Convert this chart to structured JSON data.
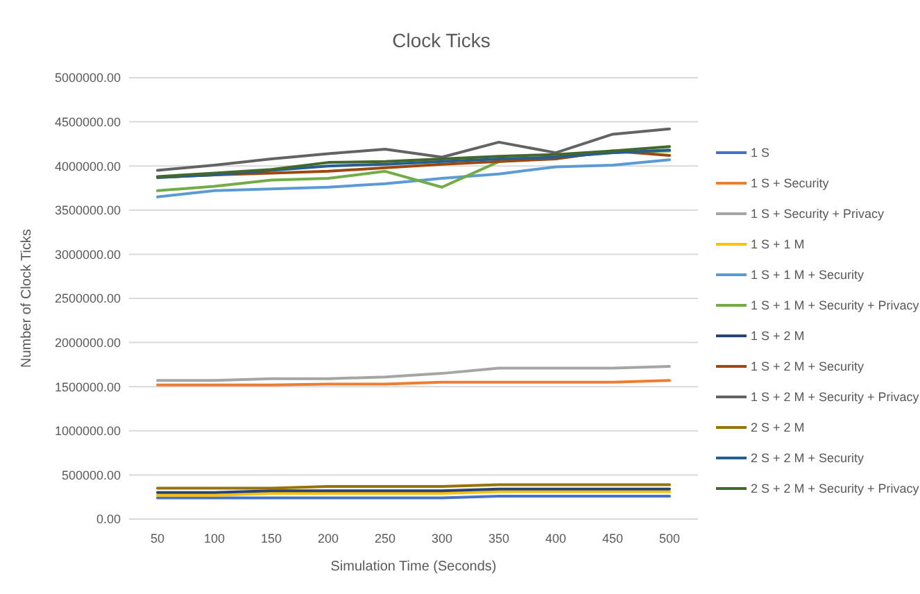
{
  "chart_data": {
    "type": "line",
    "title": "Clock Ticks",
    "xlabel": "Simulation Time (Seconds)",
    "ylabel": "Number of Clock Ticks",
    "categories": [
      "50",
      "100",
      "150",
      "200",
      "250",
      "300",
      "350",
      "400",
      "450",
      "500"
    ],
    "ylim": [
      0,
      5000000
    ],
    "yticks": [
      {
        "value": 0,
        "label": "0.00"
      },
      {
        "value": 500000,
        "label": "500000.00"
      },
      {
        "value": 1000000,
        "label": "1000000.00"
      },
      {
        "value": 1500000,
        "label": "1500000.00"
      },
      {
        "value": 2000000,
        "label": "2000000.00"
      },
      {
        "value": 2500000,
        "label": "2500000.00"
      },
      {
        "value": 3000000,
        "label": "3000000.00"
      },
      {
        "value": 3500000,
        "label": "3500000.00"
      },
      {
        "value": 4000000,
        "label": "4000000.00"
      },
      {
        "value": 4500000,
        "label": "4500000.00"
      },
      {
        "value": 5000000,
        "label": "5000000.00"
      }
    ],
    "grid": "y",
    "legend": "right",
    "marker": "none",
    "line_style": "solid",
    "series": [
      {
        "name": "1 S",
        "color": "#4472c4",
        "values": [
          240000,
          240000,
          240000,
          240000,
          240000,
          240000,
          260000,
          260000,
          260000,
          260000
        ]
      },
      {
        "name": "1 S + Security",
        "color": "#ed7d31",
        "values": [
          1520000,
          1520000,
          1520000,
          1530000,
          1530000,
          1550000,
          1550000,
          1550000,
          1550000,
          1570000
        ]
      },
      {
        "name": "1 S + Security + Privacy",
        "color": "#a5a5a5",
        "values": [
          1570000,
          1570000,
          1590000,
          1590000,
          1610000,
          1650000,
          1710000,
          1710000,
          1710000,
          1730000
        ]
      },
      {
        "name": "1  S + 1 M",
        "color": "#ffc000",
        "values": [
          270000,
          270000,
          290000,
          290000,
          290000,
          290000,
          310000,
          310000,
          310000,
          310000
        ]
      },
      {
        "name": "1 S + 1 M + Security",
        "color": "#5b9bd5",
        "values": [
          3650000,
          3720000,
          3740000,
          3760000,
          3800000,
          3860000,
          3910000,
          3990000,
          4010000,
          4070000
        ]
      },
      {
        "name": "1 S + 1 M + Security + Privacy",
        "color": "#70ad47",
        "values": [
          3720000,
          3770000,
          3840000,
          3860000,
          3940000,
          3760000,
          4050000,
          4100000,
          4150000,
          4170000
        ]
      },
      {
        "name": "1  S + 2 M",
        "color": "#264478",
        "values": [
          300000,
          300000,
          320000,
          320000,
          320000,
          320000,
          340000,
          340000,
          340000,
          340000
        ]
      },
      {
        "name": "1 S + 2 M + Security",
        "color": "#9e480e",
        "values": [
          3870000,
          3900000,
          3920000,
          3940000,
          3980000,
          4020000,
          4050000,
          4080000,
          4170000,
          4120000
        ]
      },
      {
        "name": "1 S + 2 M + Security + Privacy",
        "color": "#636363",
        "values": [
          3950000,
          4010000,
          4080000,
          4140000,
          4190000,
          4100000,
          4270000,
          4150000,
          4360000,
          4420000
        ]
      },
      {
        "name": "2 S + 2 M",
        "color": "#997300",
        "values": [
          350000,
          350000,
          350000,
          370000,
          370000,
          370000,
          390000,
          390000,
          390000,
          390000
        ]
      },
      {
        "name": "2 S + 2 M + Security",
        "color": "#255e91",
        "values": [
          3870000,
          3900000,
          3950000,
          4000000,
          4020000,
          4050000,
          4080000,
          4100000,
          4150000,
          4180000
        ]
      },
      {
        "name": "2 S + 2 M + Security + Privacy",
        "color": "#43682b",
        "values": [
          3880000,
          3920000,
          3960000,
          4040000,
          4050000,
          4080000,
          4110000,
          4130000,
          4170000,
          4220000
        ]
      }
    ]
  }
}
